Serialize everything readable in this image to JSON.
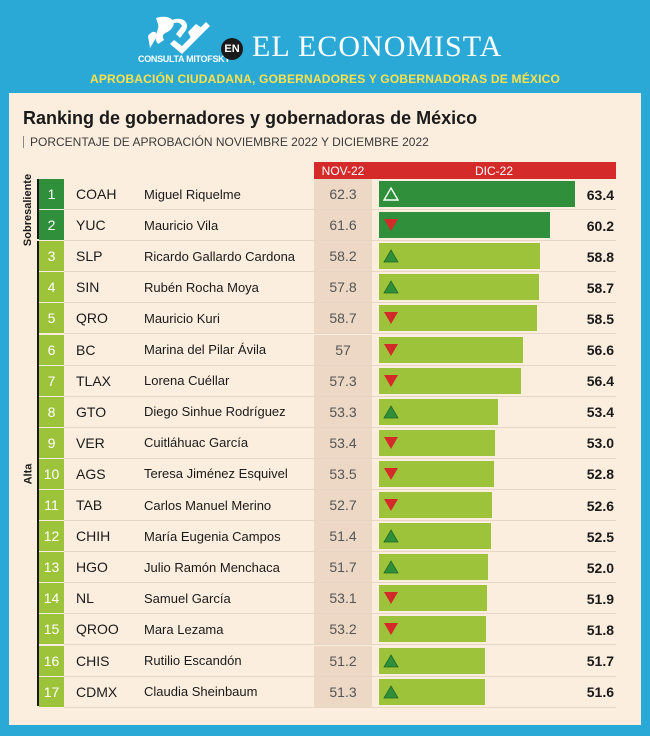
{
  "header": {
    "logo_text": "CONSULTA MITOFSKY",
    "en_badge": "EN",
    "brand": "EL ECONOMISTA",
    "subtitle": "APROBACIÓN CIUDADANA, GOBERNADORES Y GOBERNADORAS DE MÉXICO"
  },
  "colors": {
    "background": "#2aa9d6",
    "panel": "#fbeede",
    "header_red": "#d42a2a",
    "dark_green": "#2f8f3a",
    "light_green": "#9dc33b",
    "subtitle_yellow": "#ffe14d",
    "arrow_up": "#2f8f3a",
    "arrow_down": "#d42a2a"
  },
  "chart_data": {
    "type": "bar",
    "title": "Ranking de gobernadores y gobernadoras de México",
    "subtitle": "PORCENTAJE DE APROBACIÓN NOVIEMBRE 2022 Y DICIEMBRE 2022",
    "columns": [
      "NOV-22",
      "DIC-22"
    ],
    "groups": [
      {
        "label": "Sobresaliente",
        "ranks": [
          1,
          2
        ]
      },
      {
        "label": "Alta",
        "ranks": [
          3,
          4,
          5,
          6,
          7,
          8,
          9,
          10,
          11,
          12,
          13,
          14,
          15,
          16,
          17
        ]
      }
    ],
    "xlim": [
      0,
      70
    ],
    "rows": [
      {
        "rank": "1",
        "state": "COAH",
        "name": "Miguel Riquelme",
        "nov": "62.3",
        "dic": "63.4",
        "value": 63.4,
        "trend": "up",
        "group": "Sobresaliente"
      },
      {
        "rank": "2",
        "state": "YUC",
        "name": "Mauricio Vila",
        "nov": "61.6",
        "dic": "60.2",
        "value": 60.2,
        "trend": "down",
        "group": "Sobresaliente"
      },
      {
        "rank": "3",
        "state": "SLP",
        "name": "Ricardo Gallardo Cardona",
        "nov": "58.2",
        "dic": "58.8",
        "value": 58.8,
        "trend": "up",
        "group": "Alta"
      },
      {
        "rank": "4",
        "state": "SIN",
        "name": "Rubén Rocha Moya",
        "nov": "57.8",
        "dic": "58.7",
        "value": 58.7,
        "trend": "up",
        "group": "Alta"
      },
      {
        "rank": "5",
        "state": "QRO",
        "name": "Mauricio Kuri",
        "nov": "58.7",
        "dic": "58.5",
        "value": 58.5,
        "trend": "down",
        "group": "Alta"
      },
      {
        "rank": "6",
        "state": "BC",
        "name": "Marina del Pilar Ávila",
        "nov": "57",
        "dic": "56.6",
        "value": 56.6,
        "trend": "down",
        "group": "Alta"
      },
      {
        "rank": "7",
        "state": "TLAX",
        "name": "Lorena Cuéllar",
        "nov": "57.3",
        "dic": "56.4",
        "value": 56.4,
        "trend": "down",
        "group": "Alta"
      },
      {
        "rank": "8",
        "state": "GTO",
        "name": "Diego Sinhue Rodríguez",
        "nov": "53.3",
        "dic": "53.4",
        "value": 53.4,
        "trend": "up",
        "group": "Alta"
      },
      {
        "rank": "9",
        "state": "VER",
        "name": "Cuitláhuac García",
        "nov": "53.4",
        "dic": "53.0",
        "value": 53.0,
        "trend": "down",
        "group": "Alta"
      },
      {
        "rank": "10",
        "state": "AGS",
        "name": "Teresa Jiménez Esquivel",
        "nov": "53.5",
        "dic": "52.8",
        "value": 52.8,
        "trend": "down",
        "group": "Alta"
      },
      {
        "rank": "11",
        "state": "TAB",
        "name": "Carlos Manuel Merino",
        "nov": "52.7",
        "dic": "52.6",
        "value": 52.6,
        "trend": "down",
        "group": "Alta"
      },
      {
        "rank": "12",
        "state": "CHIH",
        "name": "María Eugenia Campos",
        "nov": "51.4",
        "dic": "52.5",
        "value": 52.5,
        "trend": "up",
        "group": "Alta"
      },
      {
        "rank": "13",
        "state": "HGO",
        "name": "Julio Ramón Menchaca",
        "nov": "51.7",
        "dic": "52.0",
        "value": 52.0,
        "trend": "up",
        "group": "Alta"
      },
      {
        "rank": "14",
        "state": "NL",
        "name": "Samuel García",
        "nov": "53.1",
        "dic": "51.9",
        "value": 51.9,
        "trend": "down",
        "group": "Alta"
      },
      {
        "rank": "15",
        "state": "QROO",
        "name": "Mara Lezama",
        "nov": "53.2",
        "dic": "51.8",
        "value": 51.8,
        "trend": "down",
        "group": "Alta"
      },
      {
        "rank": "16",
        "state": "CHIS",
        "name": "Rutilio Escandón",
        "nov": "51.2",
        "dic": "51.7",
        "value": 51.7,
        "trend": "up",
        "group": "Alta"
      },
      {
        "rank": "17",
        "state": "CDMX",
        "name": "Claudia Sheinbaum",
        "nov": "51.3",
        "dic": "51.6",
        "value": 51.6,
        "trend": "up",
        "group": "Alta"
      }
    ]
  }
}
